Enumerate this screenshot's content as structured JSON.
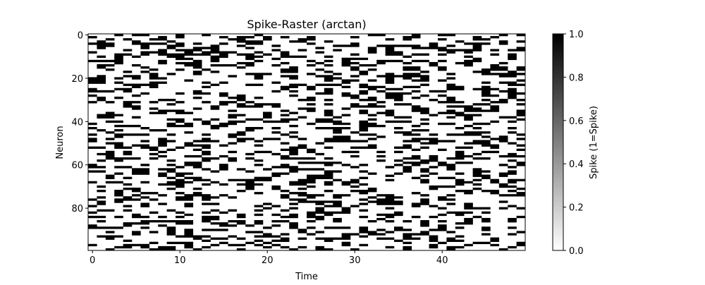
{
  "chart_data": {
    "type": "heatmap",
    "title": "Spike-Raster (arctan)",
    "xlabel": "Time",
    "ylabel": "Neuron",
    "colorbar_label": "Spike (1=Spike)",
    "n_neurons": 100,
    "n_steps": 50,
    "xlim": [
      -0.5,
      49.5
    ],
    "ylim": [
      99.5,
      -0.5
    ],
    "xticks": [
      0,
      10,
      20,
      30,
      40
    ],
    "xtick_labels": [
      "0",
      "10",
      "20",
      "30",
      "40"
    ],
    "yticks": [
      0,
      20,
      40,
      60,
      80
    ],
    "ytick_labels": [
      "0",
      "20",
      "40",
      "60",
      "80"
    ],
    "colorbar_range": [
      0.0,
      1.0
    ],
    "colorbar_ticks": [
      0.0,
      0.2,
      0.4,
      0.6,
      0.8,
      1.0
    ],
    "colorbar_tick_labels": [
      "0.0",
      "0.2",
      "0.4",
      "0.6",
      "0.8",
      "1.0"
    ],
    "colormap": "gray_r",
    "colors": {
      "spike": "#000000",
      "no_spike": "#ffffff"
    },
    "spike_probability": 0.3,
    "random_seed": 20240617,
    "cells_note": "binary spike matrix (neuron x time), 1 = spike"
  }
}
